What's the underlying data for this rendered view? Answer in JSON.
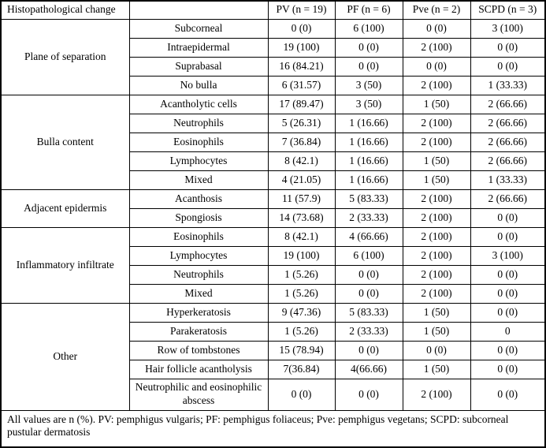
{
  "colors": {
    "border": "#000000",
    "text": "#000000",
    "background": "#ffffff"
  },
  "table": {
    "header": [
      "Histopathological change",
      "",
      "PV (n = 19)",
      "PF (n = 6)",
      "Pve (n = 2)",
      "SCPD (n = 3)"
    ],
    "groups": [
      {
        "label": "Plane of separation",
        "rows": [
          {
            "label": "Subcorneal",
            "values": [
              "0 (0)",
              "6 (100)",
              "0 (0)",
              "3 (100)"
            ]
          },
          {
            "label": "Intraepidermal",
            "values": [
              "19 (100)",
              "0 (0)",
              "2 (100)",
              "0 (0)"
            ]
          },
          {
            "label": "Suprabasal",
            "values": [
              "16 (84.21)",
              "0 (0)",
              "0 (0)",
              "0 (0)"
            ]
          },
          {
            "label": "No bulla",
            "values": [
              "6 (31.57)",
              "3 (50)",
              "2 (100)",
              "1 (33.33)"
            ]
          }
        ]
      },
      {
        "label": "Bulla content",
        "rows": [
          {
            "label": "Acantholytic cells",
            "values": [
              "17 (89.47)",
              "3 (50)",
              "1 (50)",
              "2 (66.66)"
            ]
          },
          {
            "label": "Neutrophils",
            "values": [
              "5 (26.31)",
              "1 (16.66)",
              "2 (100)",
              "2 (66.66)"
            ]
          },
          {
            "label": "Eosinophils",
            "values": [
              "7 (36.84)",
              "1 (16.66)",
              "2 (100)",
              "2 (66.66)"
            ]
          },
          {
            "label": "Lymphocytes",
            "values": [
              "8 (42.1)",
              "1 (16.66)",
              "1 (50)",
              "2 (66.66)"
            ]
          },
          {
            "label": "Mixed",
            "values": [
              "4 (21.05)",
              "1 (16.66)",
              "1 (50)",
              "1 (33.33)"
            ]
          }
        ]
      },
      {
        "label": "Adjacent epidermis",
        "rows": [
          {
            "label": "Acanthosis",
            "values": [
              "11 (57.9)",
              "5 (83.33)",
              "2 (100)",
              "2 (66.66)"
            ]
          },
          {
            "label": "Spongiosis",
            "values": [
              "14 (73.68)",
              "2 (33.33)",
              "2 (100)",
              "0 (0)"
            ]
          }
        ]
      },
      {
        "label": "Inflammatory infiltrate",
        "rows": [
          {
            "label": "Eosinophils",
            "values": [
              "8 (42.1)",
              "4 (66.66)",
              "2 (100)",
              "0 (0)"
            ]
          },
          {
            "label": "Lymphocytes",
            "values": [
              "19 (100)",
              "6 (100)",
              "2 (100)",
              "3 (100)"
            ]
          },
          {
            "label": "Neutrophils",
            "values": [
              "1 (5.26)",
              "0 (0)",
              "2 (100)",
              "0 (0)"
            ]
          },
          {
            "label": "Mixed",
            "values": [
              "1 (5.26)",
              "0 (0)",
              "2 (100)",
              "0 (0)"
            ]
          }
        ]
      },
      {
        "label": "Other",
        "rows": [
          {
            "label": "Hyperkeratosis",
            "values": [
              "9 (47.36)",
              "5 (83.33)",
              "1 (50)",
              "0 (0)"
            ]
          },
          {
            "label": "Parakeratosis",
            "values": [
              "1 (5.26)",
              "2 (33.33)",
              "1 (50)",
              "0"
            ]
          },
          {
            "label": "Row of tombstones",
            "values": [
              "15 (78.94)",
              "0 (0)",
              "0 (0)",
              "0 (0)"
            ]
          },
          {
            "label": "Hair follicle acantholysis",
            "values": [
              "7(36.84)",
              "4(66.66)",
              "1 (50)",
              "0 (0)"
            ]
          },
          {
            "label": "Neutrophilic and eosinophilic abscess",
            "values": [
              "0 (0)",
              "0 (0)",
              "2 (100)",
              "0 (0)"
            ],
            "tall": true
          }
        ]
      }
    ],
    "footnote": "All values are n (%). PV: pemphigus vulgaris; PF: pemphigus foliaceus; Pve: pemphigus vegetans; SCPD: subcorneal pustular dermatosis"
  }
}
